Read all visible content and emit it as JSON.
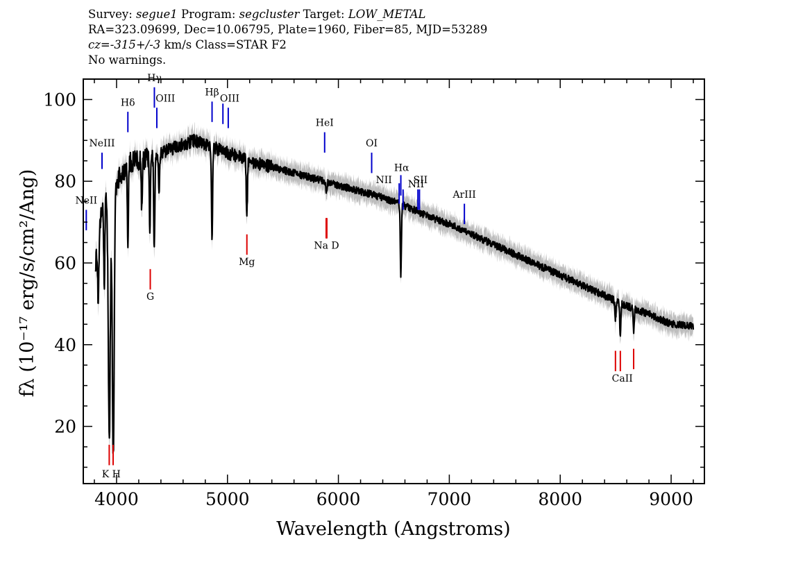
{
  "header": {
    "survey_label": "Survey:",
    "survey": "segue1",
    "program_label": "Program:",
    "program": "segcluster",
    "target_label": "Target:",
    "target": "LOW_METAL",
    "coords": "RA=323.09699, Dec=10.06795, Plate=1960, Fiber=85, MJD=53289",
    "cz_label": "cz=",
    "cz_value": "-315+/-3",
    "cz_unit": "km/s",
    "class": "Class=STAR F2",
    "warnings": "No warnings."
  },
  "colors": {
    "spectrum": "#000000",
    "error_band": "#bdbdbd",
    "emission": "#0000cc",
    "absorption": "#dd0000"
  },
  "chart_data": {
    "type": "line",
    "xlabel": "Wavelength (Angstroms)",
    "ylabel": "fλ (10⁻¹⁷ erg/s/cm²/Ang)",
    "xlim": [
      3700,
      9300
    ],
    "ylim": [
      6,
      105
    ],
    "xticks": [
      4000,
      5000,
      6000,
      7000,
      8000,
      9000
    ],
    "yticks": [
      20,
      40,
      60,
      80,
      100
    ],
    "continuum": {
      "x": [
        3810,
        3850,
        3900,
        3950,
        4000,
        4050,
        4100,
        4150,
        4200,
        4300,
        4400,
        4500,
        4600,
        4700,
        4800,
        4900,
        5000,
        5100,
        5200,
        5400,
        5600,
        5800,
        6000,
        6200,
        6400,
        6600,
        6800,
        7000,
        7200,
        7400,
        7600,
        7800,
        8000,
        8200,
        8400,
        8600,
        8800,
        9000,
        9200
      ],
      "y": [
        60,
        70,
        76,
        78,
        80,
        82,
        84,
        85,
        85,
        86,
        87,
        88,
        89,
        90,
        89,
        88,
        87,
        86,
        85,
        83.5,
        82,
        80.5,
        79,
        77.5,
        76,
        74,
        71.5,
        69.5,
        67,
        64.5,
        62,
        59.5,
        57,
        54.5,
        52,
        49.5,
        47.5,
        45,
        44.5
      ]
    },
    "absorption_features": [
      {
        "x": 3835,
        "y": 48
      },
      {
        "x": 3889,
        "y": 55
      },
      {
        "x": 3934,
        "y": 17
      },
      {
        "x": 3970,
        "y": 12
      },
      {
        "x": 4102,
        "y": 64
      },
      {
        "x": 4227,
        "y": 73
      },
      {
        "x": 4300,
        "y": 66
      },
      {
        "x": 4340,
        "y": 63
      },
      {
        "x": 4383,
        "y": 78
      },
      {
        "x": 4861,
        "y": 66
      },
      {
        "x": 5175,
        "y": 71
      },
      {
        "x": 5892,
        "y": 77
      },
      {
        "x": 6563,
        "y": 57
      },
      {
        "x": 8498,
        "y": 46
      },
      {
        "x": 8542,
        "y": 42
      },
      {
        "x": 8662,
        "y": 43
      }
    ],
    "emission_lines": [
      {
        "label": "NeII",
        "x": 3727,
        "y0": 68,
        "y1": 73
      },
      {
        "label": "NeIII",
        "x": 3869,
        "y0": 83,
        "y1": 87
      },
      {
        "label": "Hδ",
        "x": 4102,
        "y0": 92,
        "y1": 97
      },
      {
        "label": "Hγ",
        "x": 4341,
        "y0": 98,
        "y1": 103
      },
      {
        "label": "OIII",
        "x": 4363,
        "y0": 93,
        "y1": 98
      },
      {
        "label": "Hβ",
        "x": 4861,
        "y0": 94.5,
        "y1": 99.5
      },
      {
        "label": "OIII",
        "x": 4959,
        "y0": 94,
        "y1": 99
      },
      {
        "label": "OIII",
        "x": 5007,
        "y0": 93,
        "y1": 98
      },
      {
        "label": "HeI",
        "x": 5876,
        "y0": 87,
        "y1": 92
      },
      {
        "label": "OI",
        "x": 6300,
        "y0": 82,
        "y1": 87
      },
      {
        "label": "NII",
        "x": 6548,
        "y0": 74.5,
        "y1": 79.5
      },
      {
        "label": "Hα",
        "x": 6563,
        "y0": 76.5,
        "y1": 81.5
      },
      {
        "label": "NII",
        "x": 6583,
        "y0": 73,
        "y1": 78
      },
      {
        "label": "SII",
        "x": 6717,
        "y0": 73,
        "y1": 78
      },
      {
        "label": "SII",
        "x": 6731,
        "y0": 73,
        "y1": 78
      },
      {
        "label": "ArIII",
        "x": 7136,
        "y0": 69.5,
        "y1": 74.5
      }
    ],
    "absorption_lines": [
      {
        "label": "K",
        "x": 3934,
        "y0": 10.5,
        "y1": 15.5
      },
      {
        "label": "H",
        "x": 3969,
        "y0": 10.5,
        "y1": 15.5
      },
      {
        "label": "G",
        "x": 4304,
        "y0": 53.5,
        "y1": 58.5
      },
      {
        "label": "Mg",
        "x": 5175,
        "y0": 62,
        "y1": 67
      },
      {
        "label": "Na",
        "x": 5890,
        "y0": 66,
        "y1": 71
      },
      {
        "label": "D",
        "x": 5896,
        "y0": 66,
        "y1": 71
      },
      {
        "label": "CaII",
        "x": 8498,
        "y0": 33.5,
        "y1": 38.5
      },
      {
        "label": "CaII",
        "x": 8542,
        "y0": 33.5,
        "y1": 38.5
      },
      {
        "label": "CaII",
        "x": 8662,
        "y0": 34,
        "y1": 39
      }
    ],
    "line_label_texts": [
      {
        "id": "neii",
        "text": "NeII",
        "x": 3727,
        "y": 74.5,
        "color": "emission"
      },
      {
        "id": "neiii",
        "text": "NeIII",
        "x": 3869,
        "y": 88.5,
        "color": "emission"
      },
      {
        "id": "hdelta",
        "text": "Hδ",
        "x": 4102,
        "y": 98.5,
        "color": "emission"
      },
      {
        "id": "hgamma",
        "text": "Hγ",
        "x": 4341,
        "y": 104.5,
        "color": "emission"
      },
      {
        "id": "oiii1",
        "text": "OIII",
        "x": 4440,
        "y": 99.5,
        "color": "emission"
      },
      {
        "id": "hbeta",
        "text": "Hβ",
        "x": 4861,
        "y": 101,
        "color": "emission"
      },
      {
        "id": "oiii2",
        "text": "OIII",
        "x": 5020,
        "y": 99.5,
        "color": "emission"
      },
      {
        "id": "hei",
        "text": "HeI",
        "x": 5876,
        "y": 93.5,
        "color": "emission"
      },
      {
        "id": "oi",
        "text": "OI",
        "x": 6300,
        "y": 88.5,
        "color": "emission"
      },
      {
        "id": "nii1",
        "text": "NII",
        "x": 6410,
        "y": 79.5,
        "color": "emission"
      },
      {
        "id": "halpha",
        "text": "Hα",
        "x": 6570,
        "y": 82.5,
        "color": "emission"
      },
      {
        "id": "nii2",
        "text": "NII",
        "x": 6700,
        "y": 78.5,
        "color": "emission"
      },
      {
        "id": "sii",
        "text": "SII",
        "x": 6740,
        "y": 79.5,
        "color": "emission"
      },
      {
        "id": "ariii",
        "text": "ArIII",
        "x": 7136,
        "y": 76,
        "color": "emission"
      },
      {
        "id": "kh",
        "text": "K H",
        "x": 3952,
        "y": 7.5,
        "color": "absorption"
      },
      {
        "id": "g",
        "text": "G",
        "x": 4304,
        "y": 51,
        "color": "absorption"
      },
      {
        "id": "mg",
        "text": "Mg",
        "x": 5175,
        "y": 59.5,
        "color": "absorption"
      },
      {
        "id": "nad",
        "text": "Na  D",
        "x": 5893,
        "y": 63.5,
        "color": "absorption"
      },
      {
        "id": "caii",
        "text": "CaII",
        "x": 8560,
        "y": 31,
        "color": "absorption"
      }
    ]
  }
}
